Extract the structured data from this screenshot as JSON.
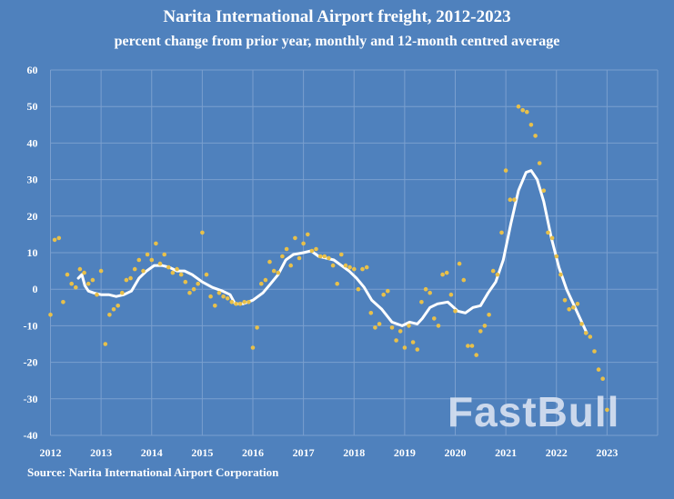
{
  "chart_data": {
    "type": "scatter",
    "title": "Narita International Airport freight, 2012-2023",
    "subtitle": "percent change from prior year, monthly and 12-month centred average",
    "xlabel": "",
    "ylabel": "",
    "xlim": [
      2012,
      2024
    ],
    "ylim": [
      -40,
      60
    ],
    "x_ticks": [
      "2012",
      "2013",
      "2014",
      "2015",
      "2016",
      "2017",
      "2018",
      "2019",
      "2020",
      "2021",
      "2022",
      "2023"
    ],
    "y_ticks": [
      "60",
      "50",
      "40",
      "30",
      "20",
      "10",
      "0",
      "-10",
      "-20",
      "-30",
      "-40"
    ],
    "grid": true,
    "series": [
      {
        "name": "monthly",
        "type": "scatter",
        "start": "2012-01",
        "color": "#e8c04a",
        "values": [
          -7,
          13.5,
          14,
          -3.5,
          4,
          1.5,
          0.5,
          5.5,
          4.5,
          1.5,
          2.5,
          -1.5,
          5,
          -15,
          -7,
          -5.5,
          -4.5,
          -1,
          2.5,
          3,
          5.5,
          8,
          5,
          9.5,
          8,
          12.5,
          7,
          9.5,
          6,
          4.5,
          5.5,
          4,
          2,
          -1,
          0,
          1.5,
          15.5,
          4,
          -2,
          -4.5,
          -1,
          -2,
          -2.5,
          -3.5,
          -4,
          -4,
          -3.5,
          -3.5,
          -16,
          -10.5,
          1.5,
          2.5,
          7.5,
          5,
          4.5,
          9,
          11,
          6.5,
          14,
          8.5,
          12.5,
          15,
          10.5,
          11,
          9,
          9,
          8.5,
          6.5,
          1.5,
          9.5,
          6.5,
          6,
          5.5,
          0,
          5.5,
          6,
          -6.5,
          -10.5,
          -9.5,
          -1.5,
          -0.5,
          -10.5,
          -14,
          -11.5,
          -16,
          -10,
          -14.5,
          -16.5,
          -3.5,
          0,
          -1,
          -8,
          -10,
          4,
          4.5,
          -1.5,
          -6,
          7,
          2.5,
          -15.5,
          -15.5,
          -18,
          -11.5,
          -10,
          -7,
          5,
          4,
          15.5,
          32.5,
          24.5,
          24.5,
          50,
          49,
          48.5,
          45,
          42,
          34.5,
          27,
          15.5,
          14,
          9,
          4,
          -3,
          -5.5,
          -5,
          -4,
          -9.5,
          -12,
          -13,
          -17,
          -22,
          -24.5,
          -33
        ]
      },
      {
        "name": "12-month centred average",
        "type": "line",
        "color": "#ffffff",
        "points": [
          [
            2012.55,
            3
          ],
          [
            2012.62,
            4
          ],
          [
            2012.68,
            1
          ],
          [
            2012.75,
            -0.5
          ],
          [
            2012.85,
            -1
          ],
          [
            2013.0,
            -1.5
          ],
          [
            2013.15,
            -1.5
          ],
          [
            2013.3,
            -2
          ],
          [
            2013.45,
            -1.5
          ],
          [
            2013.6,
            -0.5
          ],
          [
            2013.75,
            3
          ],
          [
            2013.9,
            5
          ],
          [
            2014.05,
            6.5
          ],
          [
            2014.2,
            6.5
          ],
          [
            2014.35,
            6
          ],
          [
            2014.5,
            5
          ],
          [
            2014.65,
            5
          ],
          [
            2014.8,
            4
          ],
          [
            2015.0,
            2
          ],
          [
            2015.2,
            0.5
          ],
          [
            2015.4,
            -0.5
          ],
          [
            2015.55,
            -1.5
          ],
          [
            2015.65,
            -4
          ],
          [
            2015.8,
            -4
          ],
          [
            2016.0,
            -3
          ],
          [
            2016.2,
            -1
          ],
          [
            2016.35,
            1.5
          ],
          [
            2016.5,
            4
          ],
          [
            2016.65,
            8
          ],
          [
            2016.8,
            9.5
          ],
          [
            2017.0,
            10
          ],
          [
            2017.15,
            10.5
          ],
          [
            2017.3,
            9
          ],
          [
            2017.45,
            8.5
          ],
          [
            2017.6,
            8
          ],
          [
            2017.75,
            6.5
          ],
          [
            2017.9,
            5
          ],
          [
            2018.05,
            3
          ],
          [
            2018.2,
            0.5
          ],
          [
            2018.35,
            -3
          ],
          [
            2018.55,
            -5.5
          ],
          [
            2018.75,
            -9
          ],
          [
            2018.95,
            -10
          ],
          [
            2019.1,
            -9
          ],
          [
            2019.25,
            -9.5
          ],
          [
            2019.35,
            -8
          ],
          [
            2019.5,
            -5
          ],
          [
            2019.65,
            -4
          ],
          [
            2019.85,
            -3.5
          ],
          [
            2020.05,
            -6
          ],
          [
            2020.2,
            -6.5
          ],
          [
            2020.35,
            -5
          ],
          [
            2020.5,
            -4.5
          ],
          [
            2020.65,
            -1
          ],
          [
            2020.8,
            2
          ],
          [
            2020.95,
            8
          ],
          [
            2021.1,
            18
          ],
          [
            2021.25,
            27
          ],
          [
            2021.4,
            32
          ],
          [
            2021.5,
            32.5
          ],
          [
            2021.62,
            30
          ],
          [
            2021.75,
            24
          ],
          [
            2021.9,
            14
          ],
          [
            2022.05,
            6
          ],
          [
            2022.2,
            0
          ],
          [
            2022.4,
            -6
          ],
          [
            2022.6,
            -12
          ]
        ]
      }
    ],
    "source": "Source: Narita International Airport Corporation",
    "watermark": "FastBull"
  },
  "colors": {
    "background": "#4f81bd",
    "grid": "#7a9fcf",
    "dots": "#e8c04a",
    "line": "#ffffff"
  }
}
